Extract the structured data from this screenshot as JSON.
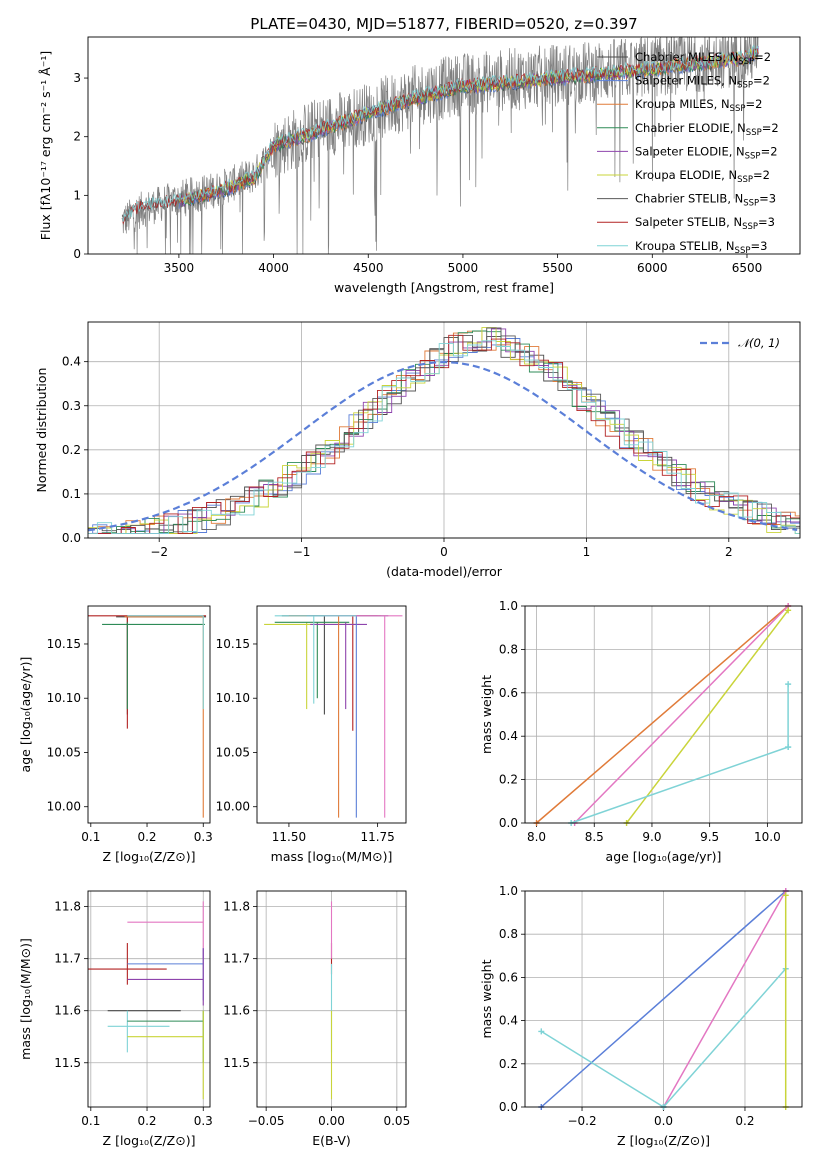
{
  "figure_title": "PLATE=0430, MJD=51877, FIBERID=0520, z=0.397",
  "models": [
    {
      "label": "Chabrier MILES, N",
      "sub": "SSP",
      "suffix": "=2",
      "color": "#4a4a4a"
    },
    {
      "label": "Salpeter MILES, N",
      "sub": "SSP",
      "suffix": "=2",
      "color": "#5b7fd8"
    },
    {
      "label": "Kroupa MILES, N",
      "sub": "SSP",
      "suffix": "=2",
      "color": "#e07b39"
    },
    {
      "label": "Chabrier ELODIE, N",
      "sub": "SSP",
      "suffix": "=2",
      "color": "#2e8b57"
    },
    {
      "label": "Salpeter ELODIE, N",
      "sub": "SSP",
      "suffix": "=2",
      "color": "#8e44ad"
    },
    {
      "label": "Kroupa ELODIE, N",
      "sub": "SSP",
      "suffix": "=2",
      "color": "#c9d43a"
    },
    {
      "label": "Chabrier STELIB, N",
      "sub": "SSP",
      "suffix": "=3",
      "color": "#5a5a5a"
    },
    {
      "label": "Salpeter STELIB, N",
      "sub": "SSP",
      "suffix": "=3",
      "color": "#b22222"
    },
    {
      "label": "Kroupa STELIB, N",
      "sub": "SSP",
      "suffix": "=3",
      "color": "#7fd3d6"
    }
  ],
  "chart_data": [
    {
      "id": "spectrum",
      "type": "line",
      "xlabel": "wavelength [Angstrom, rest frame]",
      "ylabel": "Flux [fλ10⁻¹⁷ erg cm⁻² s⁻¹ Å⁻¹]",
      "xlim": [
        3020,
        6780
      ],
      "ylim": [
        0,
        3.7
      ],
      "xticks": [
        3500,
        4000,
        4500,
        5000,
        5500,
        6000,
        6500
      ],
      "yticks": [
        0,
        1,
        2,
        3
      ],
      "data_color": "#808080",
      "data_envelope": [
        [
          3200,
          0.55
        ],
        [
          3300,
          0.75
        ],
        [
          3500,
          0.95
        ],
        [
          3700,
          1.1
        ],
        [
          3900,
          1.35
        ],
        [
          4000,
          1.8
        ],
        [
          4200,
          2.1
        ],
        [
          4500,
          2.4
        ],
        [
          4800,
          2.75
        ],
        [
          5000,
          2.9
        ],
        [
          5500,
          3.05
        ],
        [
          6000,
          3.2
        ],
        [
          6500,
          3.4
        ],
        [
          6560,
          3.5
        ]
      ],
      "model_envelope": [
        [
          3200,
          0.58
        ],
        [
          3300,
          0.8
        ],
        [
          3500,
          0.9
        ],
        [
          3700,
          1.05
        ],
        [
          3900,
          1.3
        ],
        [
          4000,
          1.85
        ],
        [
          4200,
          2.05
        ],
        [
          4500,
          2.4
        ],
        [
          4800,
          2.7
        ],
        [
          5000,
          2.85
        ],
        [
          5500,
          3.0
        ],
        [
          6000,
          3.15
        ],
        [
          6500,
          3.35
        ],
        [
          6560,
          3.45
        ]
      ]
    },
    {
      "id": "residuals",
      "type": "histogram",
      "xlabel": "(data-model)/error",
      "ylabel": "Normed distribution",
      "xlim": [
        -2.5,
        2.5
      ],
      "ylim": [
        0,
        0.49
      ],
      "xticks": [
        -2,
        -1,
        0,
        1,
        2
      ],
      "yticks": [
        0.0,
        0.1,
        0.2,
        0.3,
        0.4
      ],
      "legend": "𝒩(0, 1)",
      "gaussian": {
        "mean": 0,
        "sigma": 1,
        "color": "#5b7fd8"
      },
      "histogram_center": 0.3,
      "histogram_sigma": 0.95
    },
    {
      "id": "age-vs-Z",
      "type": "errorbar",
      "xlabel": "Z [log₁₀(Z/Z⊙)]",
      "ylabel": "age  [log₁₀(age/yr)]",
      "xlim": [
        0.095,
        0.312
      ],
      "ylim": [
        9.985,
        10.185
      ],
      "xticks": [
        0.1,
        0.2,
        0.3
      ],
      "yticks": [
        10.0,
        10.05,
        10.1,
        10.15
      ],
      "points": [
        {
          "x": 0.165,
          "y": 10.175,
          "xerr": [
            0.145,
            0.305
          ],
          "yerr": [
            10.085,
            10.176
          ],
          "color": "#4a4a4a"
        },
        {
          "x": 0.165,
          "y": 10.176,
          "xerr": [
            0.09,
            0.305
          ],
          "yerr": [
            10.072,
            10.176
          ],
          "color": "#b22222"
        },
        {
          "x": 0.165,
          "y": 10.168,
          "xerr": [
            0.12,
            0.303
          ],
          "yerr": [
            10.09,
            10.17
          ],
          "color": "#2e8b57"
        },
        {
          "x": 0.3,
          "y": 10.175,
          "xerr": [
            0.16,
            0.3
          ],
          "yerr": [
            9.99,
            10.176
          ],
          "color": "#e07b39"
        },
        {
          "x": 0.3,
          "y": 10.176,
          "xerr": [
            0.165,
            0.3
          ],
          "yerr": [
            10.09,
            10.176
          ],
          "color": "#7fd3d6"
        }
      ]
    },
    {
      "id": "age-vs-mass",
      "type": "errorbar",
      "xlabel": "mass [log₁₀(M/M⊙)]",
      "ylabel": "",
      "xlim": [
        11.41,
        11.83
      ],
      "ylim": [
        9.985,
        10.185
      ],
      "xticks": [
        11.5,
        11.75
      ],
      "yticks": [
        10.0,
        10.05,
        10.1,
        10.15
      ],
      "points": [
        {
          "x": 11.6,
          "y": 10.176,
          "xerr": [
            11.48,
            11.75
          ],
          "yerr": [
            10.085,
            10.176
          ],
          "color": "#4a4a4a"
        },
        {
          "x": 11.68,
          "y": 10.176,
          "xerr": [
            11.5,
            11.76
          ],
          "yerr": [
            10.07,
            10.176
          ],
          "color": "#b22222"
        },
        {
          "x": 11.55,
          "y": 10.168,
          "xerr": [
            11.43,
            11.7
          ],
          "yerr": [
            10.09,
            10.17
          ],
          "color": "#c9d43a"
        },
        {
          "x": 11.58,
          "y": 10.17,
          "xerr": [
            11.46,
            11.67
          ],
          "yerr": [
            10.1,
            10.17
          ],
          "color": "#2e8b57"
        },
        {
          "x": 11.66,
          "y": 10.168,
          "xerr": [
            11.56,
            11.72
          ],
          "yerr": [
            10.09,
            10.17
          ],
          "color": "#8e44ad"
        },
        {
          "x": 11.64,
          "y": 10.176,
          "xerr": [
            11.5,
            11.78
          ],
          "yerr": [
            9.99,
            10.176
          ],
          "color": "#e07b39"
        },
        {
          "x": 11.69,
          "y": 10.176,
          "xerr": [
            11.55,
            11.78
          ],
          "yerr": [
            9.99,
            10.176
          ],
          "color": "#5b7fd8"
        },
        {
          "x": 11.77,
          "y": 10.176,
          "xerr": [
            11.6,
            11.82
          ],
          "yerr": [
            9.99,
            10.176
          ],
          "color": "#e377c2"
        },
        {
          "x": 11.57,
          "y": 10.176,
          "xerr": [
            11.46,
            11.69
          ],
          "yerr": [
            10.095,
            10.176
          ],
          "color": "#7fd3d6"
        }
      ]
    },
    {
      "id": "mass-weight-vs-age",
      "type": "line",
      "xlabel": "age  [log₁₀(age/yr)]",
      "ylabel": "mass weight",
      "xlim": [
        7.9,
        10.3
      ],
      "ylim": [
        0,
        1
      ],
      "xticks": [
        8.0,
        8.5,
        9.0,
        9.5,
        10.0
      ],
      "yticks": [
        0.0,
        0.2,
        0.4,
        0.6,
        0.8,
        1.0
      ],
      "series": [
        {
          "x": [
            8.0,
            10.18
          ],
          "y": [
            0.0,
            1.0
          ],
          "color": "#e07b39"
        },
        {
          "x": [
            8.33,
            10.18
          ],
          "y": [
            0.0,
            1.0
          ],
          "color": "#e377c2"
        },
        {
          "x": [
            8.78,
            10.18
          ],
          "y": [
            0.0,
            0.98
          ],
          "color": "#c9d43a"
        },
        {
          "x": [
            8.3,
            10.18
          ],
          "y": [
            0.0,
            0.35
          ],
          "color": "#7fd3d6"
        },
        {
          "x": [
            10.18,
            10.18
          ],
          "y": [
            0.35,
            0.64
          ],
          "color": "#7fd3d6"
        }
      ]
    },
    {
      "id": "mass-vs-Z",
      "type": "errorbar",
      "xlabel": "Z [log₁₀(Z/Z⊙)]",
      "ylabel": "mass [log₁₀(M/M⊙)]",
      "xlim": [
        0.095,
        0.312
      ],
      "ylim": [
        11.415,
        11.83
      ],
      "xticks": [
        0.1,
        0.2,
        0.3
      ],
      "yticks": [
        11.5,
        11.6,
        11.7,
        11.8
      ],
      "points": [
        {
          "x": 0.165,
          "y": 11.68,
          "xerr": [
            0.09,
            0.235
          ],
          "yerr": [
            11.65,
            11.73
          ],
          "color": "#b22222"
        },
        {
          "x": 0.2,
          "y": 11.6,
          "xerr": [
            0.13,
            0.26
          ],
          "yerr": [
            11.6,
            11.6
          ],
          "color": "#4a4a4a"
        },
        {
          "x": 0.165,
          "y": 11.57,
          "xerr": [
            0.13,
            0.24
          ],
          "yerr": [
            11.52,
            11.6
          ],
          "color": "#7fd3d6"
        },
        {
          "x": 0.3,
          "y": 11.77,
          "xerr": [
            0.165,
            0.3
          ],
          "yerr": [
            11.7,
            11.81
          ],
          "color": "#e377c2"
        },
        {
          "x": 0.3,
          "y": 11.69,
          "xerr": [
            0.165,
            0.3
          ],
          "yerr": [
            11.62,
            11.72
          ],
          "color": "#5b7fd8"
        },
        {
          "x": 0.3,
          "y": 11.66,
          "xerr": [
            0.165,
            0.3
          ],
          "yerr": [
            11.61,
            11.72
          ],
          "color": "#8e44ad"
        },
        {
          "x": 0.3,
          "y": 11.58,
          "xerr": [
            0.165,
            0.3
          ],
          "yerr": [
            11.5,
            11.6
          ],
          "color": "#2e8b57"
        },
        {
          "x": 0.3,
          "y": 11.55,
          "xerr": [
            0.165,
            0.3
          ],
          "yerr": [
            11.43,
            11.6
          ],
          "color": "#c9d43a"
        }
      ]
    },
    {
      "id": "mass-vs-EBV",
      "type": "errorbar",
      "xlabel": "E(B-V)",
      "ylabel": "",
      "xlim": [
        -0.057,
        0.057
      ],
      "ylim": [
        11.415,
        11.83
      ],
      "xticks": [
        -0.05,
        0.0,
        0.05
      ],
      "yticks": [
        11.5,
        11.6,
        11.7,
        11.8
      ],
      "points": [
        {
          "x": 0.0,
          "y": 11.7,
          "xerr": [
            0,
            0
          ],
          "yerr": [
            11.67,
            11.73
          ],
          "color": "#b22222"
        },
        {
          "x": 0.0,
          "y": 11.77,
          "xerr": [
            0,
            0
          ],
          "yerr": [
            11.7,
            11.81
          ],
          "color": "#e377c2"
        },
        {
          "x": 0.0,
          "y": 11.6,
          "xerr": [
            0,
            0
          ],
          "yerr": [
            11.52,
            11.69
          ],
          "color": "#7fd3d6"
        },
        {
          "x": 0.0,
          "y": 11.55,
          "xerr": [
            0,
            0
          ],
          "yerr": [
            11.43,
            11.6
          ],
          "color": "#c9d43a"
        }
      ]
    },
    {
      "id": "mass-weight-vs-Z",
      "type": "line",
      "xlabel": "Z [log₁₀(Z/Z⊙)]",
      "ylabel": "mass weight",
      "xlim": [
        -0.34,
        0.34
      ],
      "ylim": [
        0,
        1
      ],
      "xticks": [
        -0.2,
        0.0,
        0.2
      ],
      "yticks": [
        0.0,
        0.2,
        0.4,
        0.6,
        0.8,
        1.0
      ],
      "series": [
        {
          "x": [
            -0.3,
            0.3
          ],
          "y": [
            0.0,
            1.0
          ],
          "color": "#5b7fd8"
        },
        {
          "x": [
            0.0,
            0.3
          ],
          "y": [
            0.0,
            1.0
          ],
          "color": "#e377c2"
        },
        {
          "x": [
            -0.3,
            0.0
          ],
          "y": [
            0.35,
            0.0
          ],
          "color": "#7fd3d6"
        },
        {
          "x": [
            0.0,
            0.3
          ],
          "y": [
            0.0,
            0.64
          ],
          "color": "#7fd3d6"
        },
        {
          "x": [
            0.3,
            0.3
          ],
          "y": [
            0.0,
            0.98
          ],
          "color": "#c9d43a"
        }
      ]
    }
  ]
}
